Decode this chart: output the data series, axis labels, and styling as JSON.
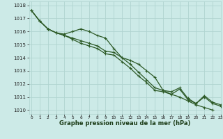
{
  "bg_color": "#cceae7",
  "grid_color": "#b0d4d0",
  "line_color": "#2d5a27",
  "title": "Graphe pression niveau de la mer (hPa)",
  "xlim": [
    -0.3,
    23
  ],
  "ylim": [
    1009.7,
    1018.3
  ],
  "yticks": [
    1010,
    1011,
    1012,
    1013,
    1014,
    1015,
    1016,
    1017,
    1018
  ],
  "xticks": [
    0,
    1,
    2,
    3,
    4,
    5,
    6,
    7,
    8,
    9,
    10,
    11,
    12,
    13,
    14,
    15,
    16,
    17,
    18,
    19,
    20,
    21,
    22,
    23
  ],
  "series": [
    [
      1017.6,
      1016.8,
      1016.2,
      1015.9,
      1015.8,
      1016.0,
      1016.2,
      1016.0,
      1015.7,
      1015.5,
      1014.7,
      1014.0,
      1013.8,
      1013.5,
      1013.0,
      1012.5,
      1011.5,
      1011.4,
      1011.7,
      1010.9,
      1010.5,
      1011.1,
      1010.6,
      1010.4
    ],
    [
      1017.6,
      1016.8,
      1016.2,
      1015.9,
      1015.7,
      1015.5,
      1015.3,
      1015.1,
      1014.9,
      1014.5,
      1014.4,
      1014.0,
      1013.5,
      1012.9,
      1012.3,
      1011.7,
      1011.5,
      1011.2,
      1011.0,
      1010.7,
      1010.4,
      1010.2,
      1010.0,
      null
    ],
    [
      1017.6,
      1016.8,
      1016.2,
      1015.9,
      1015.7,
      1015.4,
      1015.1,
      1014.9,
      1014.7,
      1014.3,
      1014.2,
      1013.7,
      1013.2,
      1012.6,
      1012.1,
      1011.5,
      1011.4,
      1011.2,
      1011.6,
      1010.8,
      1010.5,
      1011.0,
      1010.5,
      1010.3
    ]
  ],
  "ylabel_fontsize": 5,
  "xlabel_fontsize": 6,
  "tick_labelsize": 5,
  "linewidth": 0.9,
  "markersize": 2.5
}
